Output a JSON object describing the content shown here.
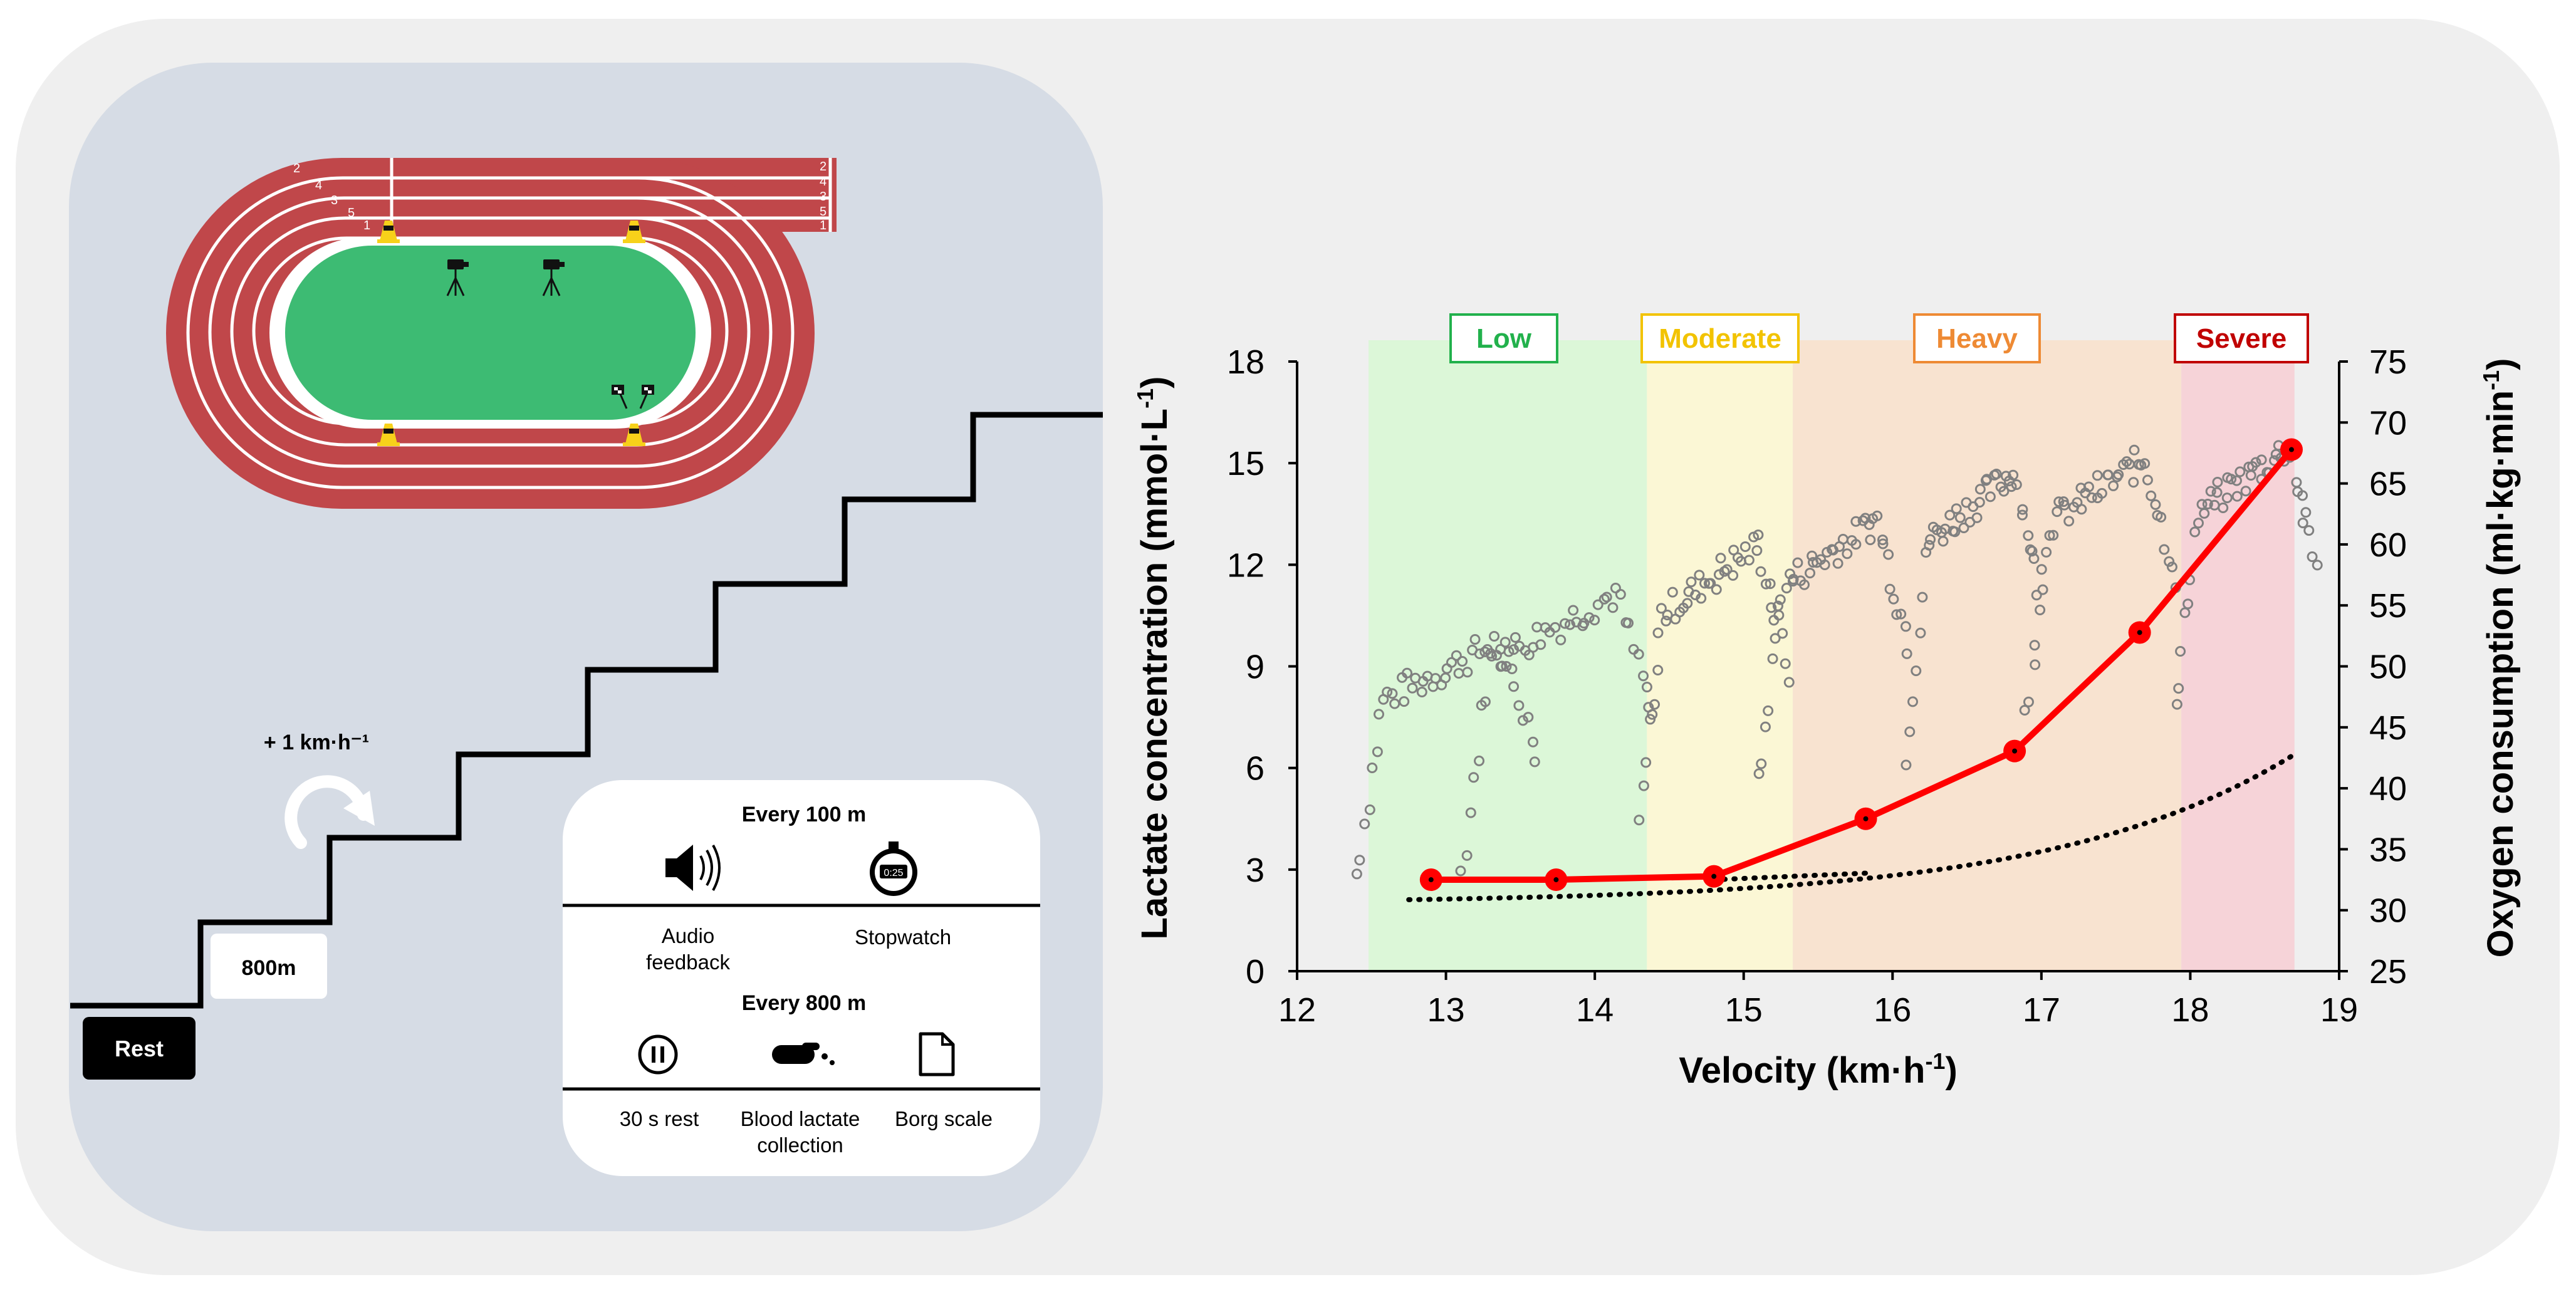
{
  "protocol": {
    "rest_label": "Rest",
    "start_distance": "800m",
    "increment_label": "+ 1 km·h⁻¹"
  },
  "legend_box": {
    "every_100_title": "Every 100 m",
    "audio_label_line1": "Audio",
    "audio_label_line2": "feedback",
    "stopwatch_label": "Stopwatch",
    "every_800_title": "Every 800 m",
    "rest30_label": "30 s rest",
    "lactate_label_line1": "Blood lactate",
    "lactate_label_line2": "collection",
    "borg_label": "Borg scale",
    "stopwatch_readout": "0:25"
  },
  "track": {
    "lane_numbers_left": [
      "2",
      "4",
      "3",
      "5",
      "1"
    ],
    "lane_numbers_right": [
      "2",
      "4",
      "3",
      "5",
      "1"
    ]
  },
  "colors": {
    "outer_bg": "#efefef",
    "panel_bg": "#d6dce5",
    "track": "#c0474a",
    "field": "#3dbb73",
    "low": "#dcf7d8",
    "moderate": "#fbf7d5",
    "heavy": "#f8e3d0",
    "severe": "#f6d3d8",
    "lactate_line": "#ff0000"
  },
  "chart_data": {
    "type": "line",
    "xlabel": "Velocity (km·h",
    "xlabel_sup": "-1",
    "xlabel_end": ")",
    "ylabel_left": "Lactate concentration (mmol·L",
    "ylabel_left_sup": "-1",
    "ylabel_left_end": ")",
    "ylabel_right": "Oxygen consumption (ml·kg·min",
    "ylabel_right_sup": "-1",
    "ylabel_right_end": ")",
    "xlim": [
      12,
      19
    ],
    "ylim_left": [
      0,
      18
    ],
    "ylim_right": [
      25,
      75
    ],
    "xticks": [
      12,
      13,
      14,
      15,
      16,
      17,
      18,
      19
    ],
    "yticks_left": [
      0,
      3,
      6,
      9,
      12,
      15,
      18
    ],
    "yticks_right": [
      25,
      30,
      35,
      40,
      45,
      50,
      55,
      60,
      65,
      70,
      75
    ],
    "domains": [
      {
        "name": "Low",
        "x0": 12.48,
        "x1": 14.35,
        "color": "#dcf7d8",
        "label_color": "#22b14c"
      },
      {
        "name": "Moderate",
        "x0": 14.35,
        "x1": 15.33,
        "color": "#fbf7d5",
        "label_color": "#f2c300"
      },
      {
        "name": "Heavy",
        "x0": 15.33,
        "x1": 17.94,
        "color": "#f8e3d0",
        "label_color": "#ee8a34"
      },
      {
        "name": "Severe",
        "x0": 17.94,
        "x1": 18.7,
        "color": "#f6d3d8",
        "label_color": "#c00000"
      }
    ],
    "lactate_series": {
      "name": "Blood lactate",
      "x": [
        12.9,
        13.74,
        14.8,
        15.82,
        16.82,
        17.66,
        18.68
      ],
      "y": [
        2.7,
        2.7,
        2.8,
        4.5,
        6.5,
        10.0,
        15.4
      ]
    },
    "fit_exponential": {
      "a": 0.11,
      "b": 0.4,
      "x": [
        12.75,
        18.7
      ]
    },
    "fit_linear": {
      "x": [
        14.8,
        15.85
      ],
      "y": [
        2.7,
        2.9
      ]
    }
  }
}
